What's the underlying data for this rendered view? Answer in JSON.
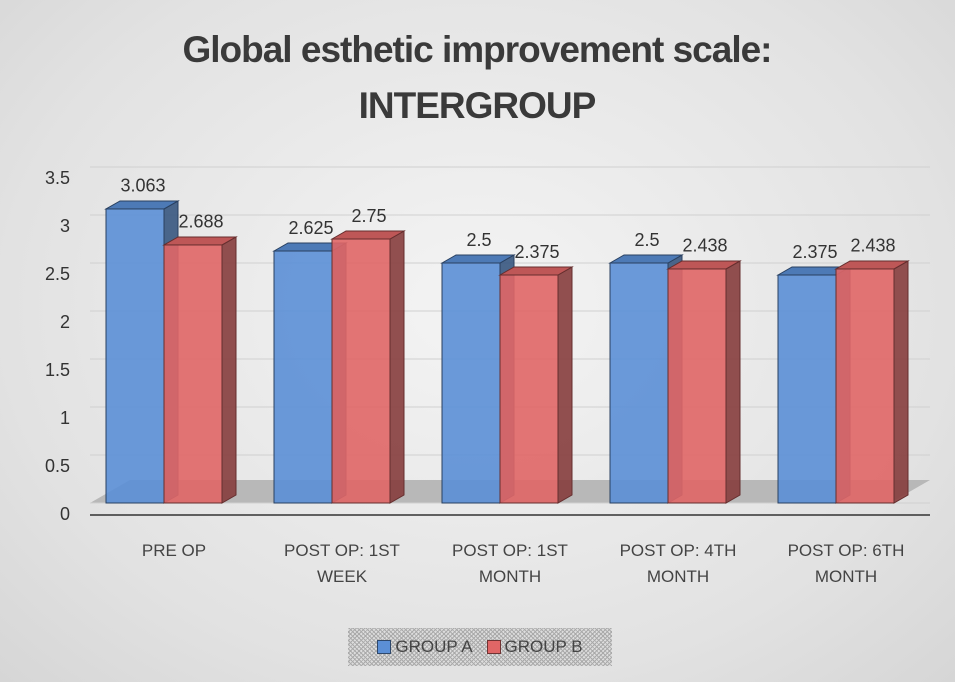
{
  "chart_data": {
    "type": "bar3d",
    "title": "Global esthetic improvement scale: INTERGROUP",
    "categories": [
      "PRE OP",
      "POST OP: 1ST WEEK",
      "POST OP: 1ST MONTH",
      "POST OP: 4TH MONTH",
      "POST OP: 6TH MONTH"
    ],
    "series": [
      {
        "name": "GROUP A",
        "color": "#5b8fd6",
        "values": [
          3.063,
          2.625,
          2.5,
          2.5,
          2.375
        ]
      },
      {
        "name": "GROUP B",
        "color": "#e06666",
        "values": [
          2.688,
          2.75,
          2.375,
          2.438,
          2.438
        ]
      }
    ],
    "ylim": [
      0,
      3.5
    ],
    "yticks": [
      0,
      0.5,
      1,
      1.5,
      2,
      2.5,
      3,
      3.5
    ],
    "grid": true,
    "legend": "bottom"
  }
}
